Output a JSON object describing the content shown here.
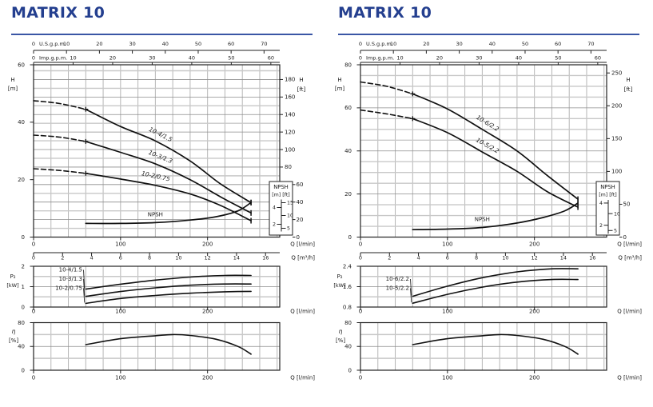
{
  "chart_data": [
    {
      "type": "line",
      "title": "MATRIX 10",
      "title_color": "#243f8f",
      "rule_color": "#3a56a5",
      "x_axis": {
        "unit_label_lmin": "Q [l/min]",
        "unit_label_m3h": "Q [m³/h]",
        "q_max_lmin": 283,
        "lmin_ticks": [
          0,
          100,
          200
        ],
        "m3h_ticks": [
          0,
          2,
          4,
          6,
          8,
          10,
          12,
          14,
          16
        ],
        "lmin_per_m3h": 16.6667,
        "grid_step_lmin": 20,
        "us_gpm": {
          "label": "U.S.g.p.m.",
          "ticks": [
            0,
            10,
            20,
            30,
            40,
            50,
            60,
            70
          ],
          "lmin_per_gpm": 3.785
        },
        "imp_gpm": {
          "label": "Imp.g.p.m.",
          "ticks": [
            0,
            10,
            20,
            30,
            40,
            50,
            60
          ],
          "lmin_per_gpm": 4.546
        }
      },
      "head_chart": {
        "y_left_label": [
          "H",
          "[m]"
        ],
        "y_right_label": [
          "H",
          "[ft]"
        ],
        "m_max": 60,
        "m_ticks": [
          0,
          20,
          40,
          60
        ],
        "ft_ticks": [
          0,
          20,
          40,
          60,
          80,
          100,
          120,
          140,
          160,
          180
        ],
        "grid": {
          "unit": "ft",
          "step": 10
        },
        "curves": [
          {
            "name": "10-4/1.5",
            "dash_until_q": 60,
            "label_q": 145,
            "q_lmin": [
              0,
              30,
              60,
              100,
              140,
              180,
              215,
              250
            ],
            "h_m": [
              47.5,
              46.5,
              44.5,
              38.5,
              33.5,
              26.5,
              18.5,
              12
            ]
          },
          {
            "name": "10-3/1.3",
            "dash_until_q": 60,
            "label_q": 145,
            "q_lmin": [
              0,
              30,
              60,
              100,
              140,
              180,
              215,
              250
            ],
            "h_m": [
              35.5,
              34.8,
              33.3,
              29.5,
              25.5,
              20,
              14,
              8.4
            ]
          },
          {
            "name": "10-2/0.75",
            "dash_until_q": 60,
            "label_q": 140,
            "q_lmin": [
              0,
              30,
              60,
              100,
              140,
              180,
              215,
              250
            ],
            "h_m": [
              23.8,
              23.2,
              22.2,
              20.2,
              18,
              15,
              11,
              5.7
            ]
          }
        ],
        "npsh_curve": {
          "label": "NPSH",
          "label_q": 140,
          "q_lmin": [
            60,
            100,
            140,
            180,
            210,
            235,
            250
          ],
          "npsh_m": [
            2.1,
            2.1,
            2.2,
            2.5,
            2.9,
            3.6,
            4.6
          ]
        },
        "npsh_inset": {
          "title": "NPSH",
          "units": "[m] [ft]",
          "m_ticks": [
            2,
            4
          ],
          "ft_ticks": [
            5,
            10,
            15
          ],
          "h_at_2m": 4.46,
          "h_per_npsh_m": 2.92
        }
      },
      "power_chart": {
        "y_label": [
          "P₂",
          "[kW]"
        ],
        "kw_min": 0,
        "kw_max": 2,
        "kw_ticks": [
          0,
          1,
          2
        ],
        "grid_step_kw": 0.5,
        "curves": [
          {
            "name": "10-4/1.5",
            "q_lmin": [
              60,
              100,
              140,
              180,
              220,
              250
            ],
            "kw": [
              0.88,
              1.12,
              1.32,
              1.47,
              1.55,
              1.55
            ]
          },
          {
            "name": "10-3/1.3",
            "q_lmin": [
              60,
              100,
              140,
              180,
              220,
              250
            ],
            "kw": [
              0.52,
              0.76,
              0.94,
              1.07,
              1.13,
              1.13
            ]
          },
          {
            "name": "10-2/0.75",
            "q_lmin": [
              60,
              100,
              140,
              180,
              220,
              250
            ],
            "kw": [
              0.18,
              0.42,
              0.57,
              0.68,
              0.75,
              0.77
            ]
          }
        ]
      },
      "eff_chart": {
        "y_label": [
          "η",
          "[%]"
        ],
        "pct_max": 80,
        "pct_ticks": [
          0,
          40,
          80
        ],
        "grid_step_pct": 20,
        "curve": {
          "q_lmin": [
            60,
            100,
            140,
            160,
            180,
            210,
            235,
            250
          ],
          "pct": [
            43,
            53,
            58,
            60,
            58.5,
            52,
            40,
            27
          ]
        }
      }
    },
    {
      "type": "line",
      "title": "MATRIX 10",
      "title_color": "#243f8f",
      "rule_color": "#3a56a5",
      "x_axis": {
        "unit_label_lmin": "Q [l/min]",
        "unit_label_m3h": "Q [m³/h]",
        "q_max_lmin": 283,
        "lmin_ticks": [
          0,
          100,
          200
        ],
        "m3h_ticks": [
          0,
          2,
          4,
          6,
          8,
          10,
          12,
          14,
          16
        ],
        "lmin_per_m3h": 16.6667,
        "grid_step_lmin": 20,
        "us_gpm": {
          "label": "U.S.g.p.m.",
          "ticks": [
            0,
            10,
            20,
            30,
            40,
            50,
            60,
            70
          ],
          "lmin_per_gpm": 3.785
        },
        "imp_gpm": {
          "label": "Imp.g.p.m.",
          "ticks": [
            0,
            10,
            20,
            30,
            40,
            50,
            60
          ],
          "lmin_per_gpm": 4.546
        }
      },
      "head_chart": {
        "y_left_label": [
          "H",
          "[m]"
        ],
        "y_right_label": [
          "H",
          "[ft]"
        ],
        "m_max": 80,
        "m_ticks": [
          0,
          20,
          40,
          60,
          80
        ],
        "ft_ticks": [
          0,
          50,
          100,
          150,
          200,
          250
        ],
        "grid": {
          "unit": "m",
          "step": 5
        },
        "curves": [
          {
            "name": "10-6/2.2",
            "dash_until_q": 60,
            "label_q": 145,
            "q_lmin": [
              0,
              30,
              60,
              100,
              140,
              180,
              215,
              250
            ],
            "h_m": [
              72,
              70,
              66.5,
              59.5,
              50,
              40,
              28.5,
              17.6
            ]
          },
          {
            "name": "10-5/2.2",
            "dash_until_q": 60,
            "label_q": 145,
            "q_lmin": [
              0,
              30,
              60,
              100,
              140,
              180,
              215,
              250
            ],
            "h_m": [
              59,
              57.2,
              55,
              48.5,
              39.5,
              30.5,
              21,
              13.9
            ]
          }
        ],
        "npsh_curve": {
          "label": "NPSH",
          "label_q": 140,
          "q_lmin": [
            60,
            100,
            140,
            180,
            210,
            235,
            250
          ],
          "npsh_m": [
            1.6,
            1.65,
            1.8,
            2.2,
            2.7,
            3.3,
            4.0
          ]
        },
        "npsh_inset": {
          "title": "NPSH",
          "units": "[m] [ft]",
          "m_ticks": [
            2,
            4
          ],
          "ft_ticks": [
            5,
            10
          ],
          "h_at_2m": 5.5,
          "h_per_npsh_m": 5.15
        }
      },
      "power_chart": {
        "y_label": [
          "P₂",
          "[kW]"
        ],
        "kw_min": 0.8,
        "kw_max": 2.4,
        "kw_ticks": [
          0.8,
          1.6,
          2.4
        ],
        "grid_step_kw": 0.4,
        "curves": [
          {
            "name": "10-6/2.2",
            "q_lmin": [
              60,
              100,
              140,
              180,
              220,
              250
            ],
            "kw": [
              1.22,
              1.62,
              1.95,
              2.18,
              2.3,
              2.3
            ]
          },
          {
            "name": "10-5/2.2",
            "q_lmin": [
              60,
              100,
              140,
              180,
              220,
              250
            ],
            "kw": [
              0.95,
              1.3,
              1.58,
              1.78,
              1.88,
              1.88
            ]
          }
        ]
      },
      "eff_chart": {
        "y_label": [
          "η",
          "[%]"
        ],
        "pct_max": 80,
        "pct_ticks": [
          0,
          40,
          80
        ],
        "grid_step_pct": 20,
        "curve": {
          "q_lmin": [
            60,
            100,
            140,
            160,
            180,
            210,
            235,
            250
          ],
          "pct": [
            43,
            53,
            58,
            60,
            58.5,
            52,
            40,
            27
          ]
        }
      }
    }
  ]
}
